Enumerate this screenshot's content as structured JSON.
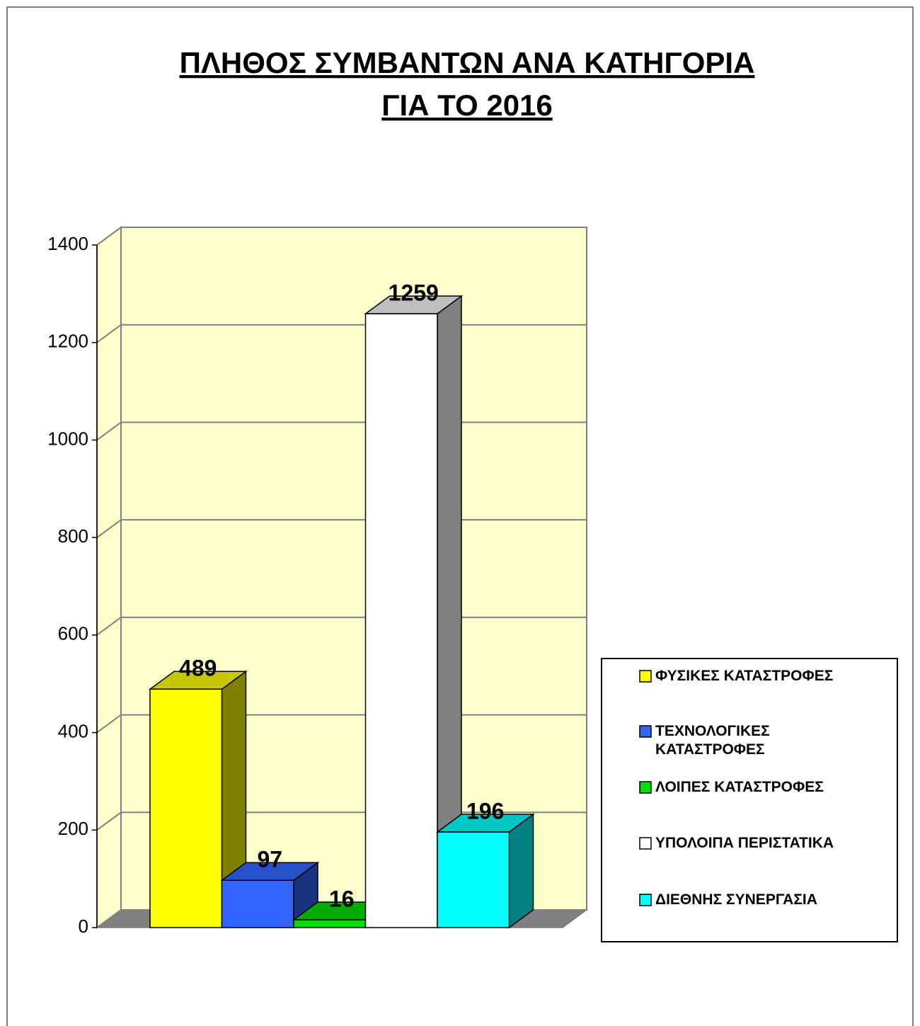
{
  "chart_data": {
    "type": "bar3d",
    "title": [
      "ΠΛΗΘΟΣ ΣΥΜΒΑΝΤΩΝ ΑΝΑ ΚΑΤΗΓΟΡΙΑ",
      "ΓΙΑ ΤΟ 2016"
    ],
    "series": [
      {
        "name": "ΦΥΣΙΚΕΣ ΚΑΤΑΣΤΡΟΦΕΣ",
        "color": "#ffff00",
        "values": [
          489
        ]
      },
      {
        "name": "ΤΕΧΝΟΛΟΓΙΚΕΣ ΚΑΤΑΣΤΡΟΦΕΣ",
        "color": "#3366ff",
        "values": [
          97
        ]
      },
      {
        "name": "ΛΟΙΠΕΣ ΚΑΤΑΣΤΡΟΦΕΣ",
        "color": "#00dd00",
        "values": [
          16
        ]
      },
      {
        "name": "ΥΠΟΛΟΙΠΑ ΠΕΡΙΣΤΑΤΙΚΑ",
        "color": "#ffffff",
        "values": [
          1259
        ]
      },
      {
        "name": "ΔΙΕΘΝΗΣ ΣΥΝΕΡΓΑΣΙΑ",
        "color": "#00ffff",
        "values": [
          196
        ]
      }
    ],
    "ylim": [
      0,
      1400
    ],
    "yticks": [
      0,
      200,
      400,
      600,
      800,
      1000,
      1200,
      1400
    ],
    "grid": true,
    "legend": "right"
  }
}
